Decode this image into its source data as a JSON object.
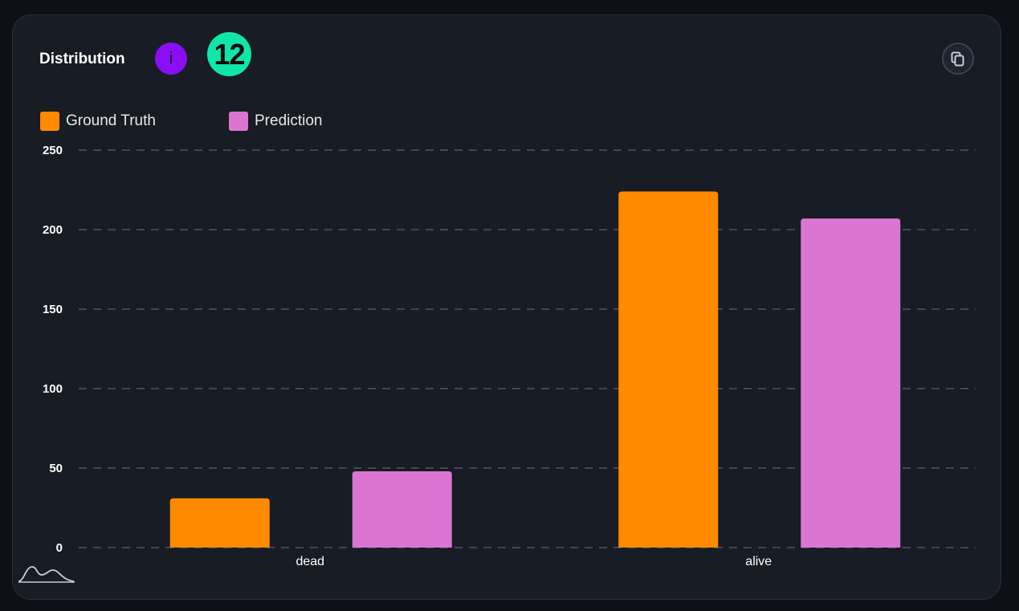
{
  "header": {
    "title": "Distribution",
    "info_icon_text": "i",
    "count_badge": "12"
  },
  "colors": {
    "background": "#0d1117",
    "card": "#181c24",
    "ground_truth": "#ff8a00",
    "prediction": "#da76d1",
    "grid": "#6b7080",
    "info_badge": "#8a0ef5",
    "count_badge": "#10e6a8"
  },
  "icons": {
    "copy": "copy-icon",
    "logo": "distribution-curve-logo"
  },
  "chart_data": {
    "type": "bar",
    "categories": [
      "dead",
      "alive"
    ],
    "series": [
      {
        "name": "Ground Truth",
        "values": [
          31,
          224
        ]
      },
      {
        "name": "Prediction",
        "values": [
          48,
          207
        ]
      }
    ],
    "yticks": [
      "0",
      "50",
      "100",
      "150",
      "200",
      "250"
    ],
    "ylim": [
      0,
      250
    ],
    "grid": true,
    "legend_position": "top-left"
  }
}
